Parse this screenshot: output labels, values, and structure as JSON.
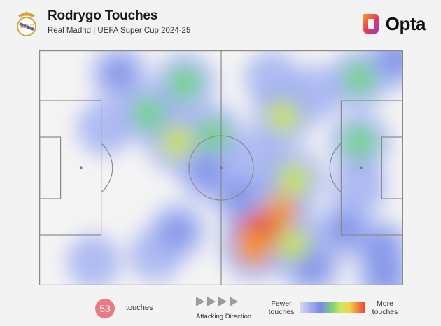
{
  "header": {
    "title": "Rodrygo Touches",
    "subtitle": "Real Madrid | UEFA Super Cup 2024-25",
    "brand": "Opta"
  },
  "footer": {
    "touch_count": "53",
    "touch_label": "touches",
    "direction_label": "Attacking Direction",
    "scale_low": "Fewer touches",
    "scale_high": "More touches"
  },
  "colors": {
    "badge": "#e97c82",
    "pitch_line": "#8a8a8a",
    "opta_orange": "#f07a27",
    "opta_purple": "#8b3dc6"
  },
  "chart_data": {
    "type": "heatmap",
    "title": "Rodrygo Touches",
    "xlim": [
      0,
      100
    ],
    "ylim": [
      0,
      100
    ],
    "attacking_direction": "right",
    "points": [
      {
        "x": 22,
        "y": 10,
        "w": 0.5
      },
      {
        "x": 40,
        "y": 14,
        "w": 0.8
      },
      {
        "x": 30,
        "y": 27,
        "w": 0.75
      },
      {
        "x": 18,
        "y": 33,
        "w": 0.45
      },
      {
        "x": 38,
        "y": 39,
        "w": 0.9
      },
      {
        "x": 48,
        "y": 36,
        "w": 0.75
      },
      {
        "x": 46,
        "y": 52,
        "w": 0.55
      },
      {
        "x": 67,
        "y": 28,
        "w": 0.85
      },
      {
        "x": 64,
        "y": 12,
        "w": 0.45
      },
      {
        "x": 76,
        "y": 18,
        "w": 0.4
      },
      {
        "x": 88,
        "y": 12,
        "w": 0.75
      },
      {
        "x": 98,
        "y": 4,
        "w": 0.55
      },
      {
        "x": 88,
        "y": 39,
        "w": 0.8
      },
      {
        "x": 70,
        "y": 55,
        "w": 0.9
      },
      {
        "x": 66,
        "y": 69,
        "w": 1.0
      },
      {
        "x": 60,
        "y": 78,
        "w": 1.3
      },
      {
        "x": 59,
        "y": 84,
        "w": 1.1
      },
      {
        "x": 70,
        "y": 83,
        "w": 0.85
      },
      {
        "x": 75,
        "y": 92,
        "w": 0.6
      },
      {
        "x": 84,
        "y": 76,
        "w": 0.55
      },
      {
        "x": 94,
        "y": 84,
        "w": 0.5
      },
      {
        "x": 95,
        "y": 96,
        "w": 0.55
      },
      {
        "x": 38,
        "y": 77,
        "w": 0.5
      },
      {
        "x": 32,
        "y": 87,
        "w": 0.35
      },
      {
        "x": 15,
        "y": 90,
        "w": 0.4
      },
      {
        "x": 88,
        "y": 58,
        "w": 0.45
      },
      {
        "x": 55,
        "y": 62,
        "w": 0.5
      },
      {
        "x": 60,
        "y": 46,
        "w": 0.4
      }
    ]
  }
}
